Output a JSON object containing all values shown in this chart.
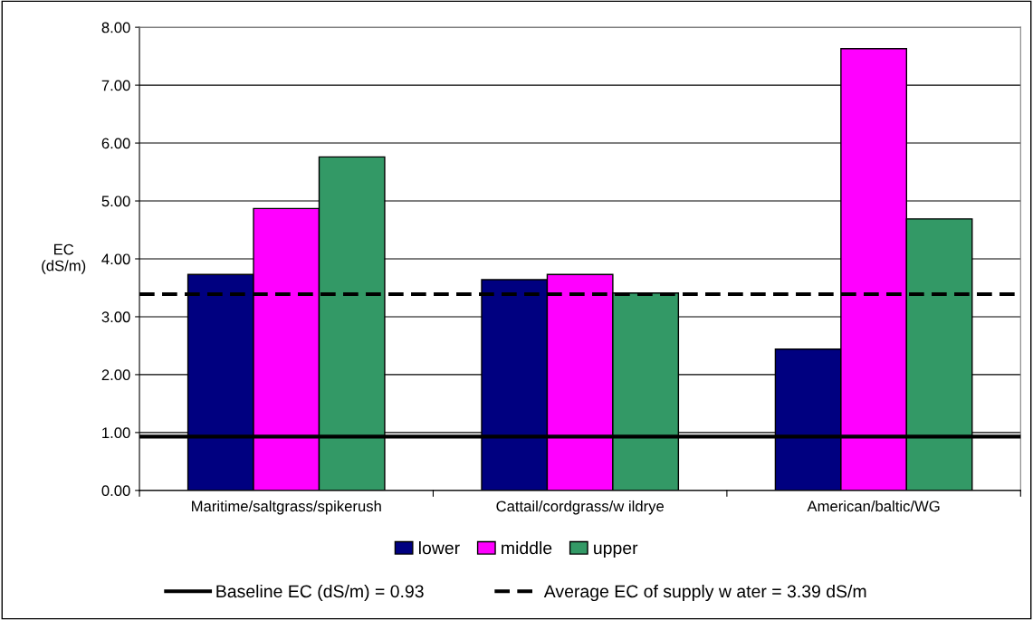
{
  "chart_data": {
    "type": "bar",
    "ylabel": "EC\n(dS/m)",
    "categories": [
      "Maritime/saltgrass/spikerush",
      "Cattail/cordgrass/w ildrye",
      "American/baltic/WG"
    ],
    "series": [
      {
        "name": "lower",
        "color": "#000080",
        "values": [
          3.73,
          3.64,
          2.44
        ]
      },
      {
        "name": "middle",
        "color": "#ff00ff",
        "values": [
          4.87,
          3.73,
          7.63
        ]
      },
      {
        "name": "upper",
        "color": "#339966",
        "values": [
          5.76,
          3.41,
          4.69
        ]
      }
    ],
    "ylim": [
      0,
      8
    ],
    "yticks": [
      {
        "value": 0,
        "label": "0.00"
      },
      {
        "value": 1,
        "label": "1.00"
      },
      {
        "value": 2,
        "label": "2.00"
      },
      {
        "value": 3,
        "label": "3.00"
      },
      {
        "value": 4,
        "label": "4.00"
      },
      {
        "value": 5,
        "label": "5.00"
      },
      {
        "value": 6,
        "label": "6.00"
      },
      {
        "value": 7,
        "label": "7.00"
      },
      {
        "value": 8,
        "label": "8.00"
      }
    ],
    "grid": "y",
    "legend": "bottom",
    "ref_lines": [
      {
        "axis": "y",
        "value": 0.93,
        "label": "Baseline EC (dS/m) = 0.93",
        "color": "#000000",
        "line_style": "solid"
      },
      {
        "axis": "y",
        "value": 3.39,
        "label": "Average EC of supply w ater = 3.39 dS/m",
        "color": "#000000",
        "line_style": "dashed"
      }
    ]
  }
}
